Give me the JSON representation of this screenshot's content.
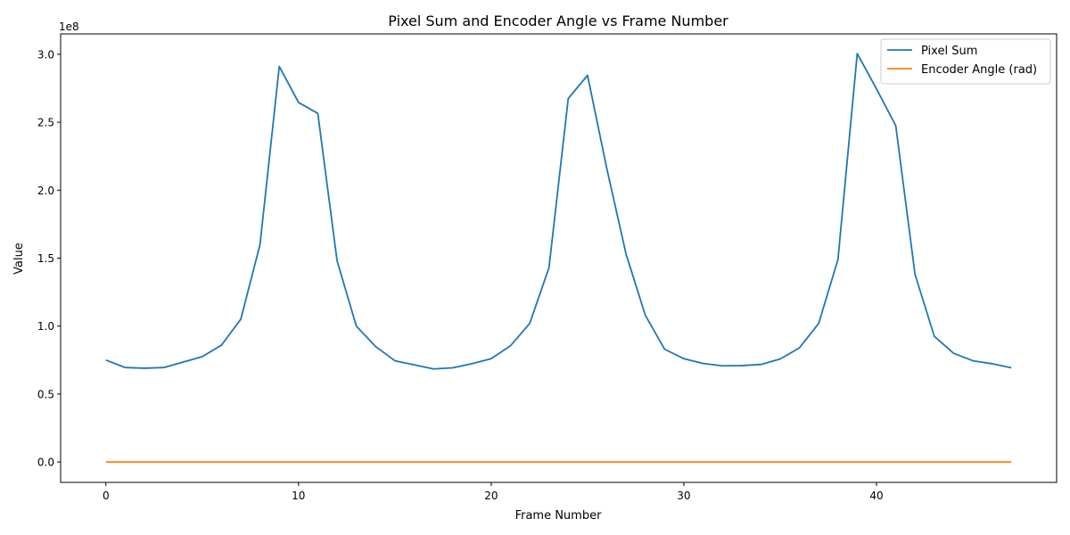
{
  "chart_data": {
    "type": "line",
    "title": "Pixel Sum and Encoder Angle vs Frame Number",
    "xlabel": "Frame Number",
    "ylabel": "Value",
    "y_offset_text": "1e8",
    "xlim": [
      -2.35,
      49.35
    ],
    "ylim": [
      -15000000,
      315000000
    ],
    "x_ticks": [
      0,
      10,
      20,
      30,
      40
    ],
    "x_tick_labels": [
      "0",
      "10",
      "20",
      "30",
      "40"
    ],
    "y_ticks": [
      0,
      50000000,
      100000000,
      150000000,
      200000000,
      250000000,
      300000000
    ],
    "y_tick_labels": [
      "0.0",
      "0.5",
      "1.0",
      "1.5",
      "2.0",
      "2.5",
      "3.0"
    ],
    "grid": false,
    "legend_position": "upper right",
    "x": [
      0,
      1,
      2,
      3,
      4,
      5,
      6,
      7,
      8,
      9,
      10,
      11,
      12,
      13,
      14,
      15,
      16,
      17,
      18,
      19,
      20,
      21,
      22,
      23,
      24,
      25,
      26,
      27,
      28,
      29,
      30,
      31,
      32,
      33,
      34,
      35,
      36,
      37,
      38,
      39,
      40,
      41,
      42,
      43,
      44,
      45,
      46,
      47
    ],
    "series": [
      {
        "name": "Pixel Sum",
        "color": "#1f77b4",
        "values": [
          75000000,
          69500000,
          69000000,
          69500000,
          73500000,
          77500000,
          86000000,
          105000000,
          160000000,
          291000000,
          264500000,
          256500000,
          148000000,
          100000000,
          85000000,
          74500000,
          71500000,
          68500000,
          69300000,
          72300000,
          76000000,
          85500000,
          102000000,
          143000000,
          267500000,
          284500000,
          216000000,
          153000000,
          108000000,
          83000000,
          76000000,
          72500000,
          70800000,
          70900000,
          71800000,
          75800000,
          84000000,
          102000000,
          149000000,
          300500000,
          274500000,
          247500000,
          138000000,
          92500000,
          80000000,
          74500000,
          72300000,
          69300000
        ]
      },
      {
        "name": "Encoder Angle (rad)",
        "color": "#ff7f0e",
        "values": [
          0,
          0,
          0,
          0,
          0,
          0,
          0,
          0,
          0,
          0,
          0,
          0,
          0,
          0,
          0,
          0,
          0,
          0,
          0,
          0,
          0,
          0,
          0,
          0,
          0,
          0,
          0,
          0,
          0,
          0,
          0,
          0,
          0,
          0,
          0,
          0,
          0,
          0,
          0,
          0,
          0,
          0,
          0,
          0,
          0,
          0,
          0,
          0
        ]
      }
    ]
  }
}
